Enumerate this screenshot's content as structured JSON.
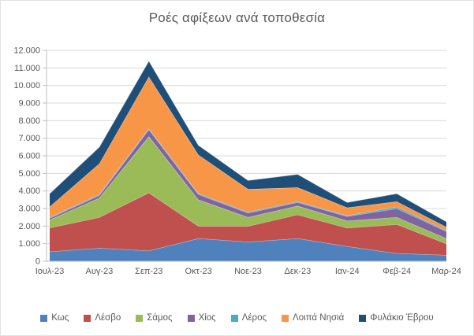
{
  "chart_data": {
    "type": "area",
    "stacked": true,
    "title": "Ροές αφίξεων ανά τοποθεσία",
    "categories": [
      "Ιουλ-23",
      "Αυγ-23",
      "Σεπ-23",
      "Οκτ-23",
      "Νοε-23",
      "Δεκ-23",
      "Ιαν-24",
      "Φεβ-24",
      "Μαρ-24"
    ],
    "series": [
      {
        "name": "Κως",
        "color": "#4F81BD",
        "values": [
          550,
          750,
          600,
          1300,
          1100,
          1300,
          850,
          450,
          350
        ]
      },
      {
        "name": "Λέσβο",
        "color": "#C0504D",
        "values": [
          1350,
          1750,
          3300,
          700,
          900,
          1350,
          1050,
          1650,
          650
        ]
      },
      {
        "name": "Σάμος",
        "color": "#9BBB59",
        "values": [
          450,
          1100,
          3200,
          1500,
          500,
          500,
          400,
          400,
          300
        ]
      },
      {
        "name": "Χίος",
        "color": "#8064A2",
        "values": [
          100,
          150,
          400,
          300,
          250,
          200,
          250,
          500,
          400
        ]
      },
      {
        "name": "Λέρος",
        "color": "#4BACC6",
        "values": [
          50,
          50,
          50,
          50,
          50,
          50,
          50,
          100,
          50
        ]
      },
      {
        "name": "Λοιπά Νησιά",
        "color": "#F79646",
        "values": [
          600,
          1750,
          2950,
          2200,
          1300,
          800,
          450,
          300,
          200
        ]
      },
      {
        "name": "Φυλάκιο Έβρου",
        "color": "#1F4E79",
        "values": [
          750,
          950,
          900,
          550,
          500,
          750,
          300,
          450,
          300
        ]
      }
    ],
    "totals": [
      3850,
      6500,
      11400,
      6600,
      4600,
      4950,
      3350,
      3850,
      2250
    ],
    "xlabel": "",
    "ylabel": "",
    "y_axis": {
      "min": 0,
      "max": 12000,
      "step": 1000,
      "tick_labels_top_to_bottom": [
        "12.000",
        "11.000",
        "10.000",
        "9.000",
        "8.000",
        "7.000",
        "6.000",
        "5.000",
        "4.000",
        "3.000",
        "2.000",
        "1.000",
        "0"
      ]
    },
    "grid": true,
    "legend_position": "bottom",
    "colors": {
      "text": "#595959",
      "gridline": "#D9D9D9",
      "axis": "#BFBFBF",
      "band_edge": "#FFFFFF"
    }
  }
}
